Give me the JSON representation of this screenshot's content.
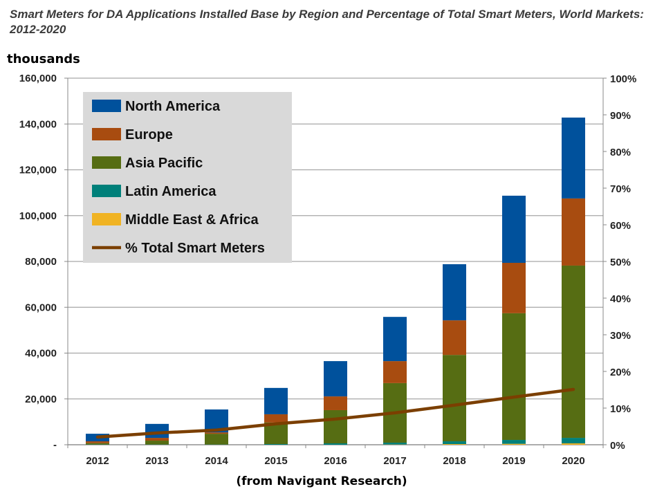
{
  "chart_data": {
    "type": "bar",
    "stacked": true,
    "title": "Smart Meters for DA Applications Installed Base by Region and Percentage of Total Smart Meters, World Markets: 2012-2020",
    "ylabel": "thousands",
    "source": "(from Navigant Research)",
    "categories": [
      "2012",
      "2013",
      "2014",
      "2015",
      "2016",
      "2017",
      "2018",
      "2019",
      "2020"
    ],
    "ylim": [
      0,
      160000
    ],
    "y_ticks": [
      "-",
      "20,000",
      "40,000",
      "60,000",
      "80,000",
      "100,000",
      "120,000",
      "140,000",
      "160,000"
    ],
    "y2lim": [
      0,
      100
    ],
    "y2_ticks": [
      "0%",
      "10%",
      "20%",
      "30%",
      "40%",
      "50%",
      "60%",
      "70%",
      "80%",
      "90%",
      "100%"
    ],
    "legend_position": "top-left",
    "series": [
      {
        "name": "Middle East & Africa",
        "color": "#f0b323",
        "values": [
          0,
          0,
          0,
          0,
          0,
          100,
          300,
          400,
          600
        ]
      },
      {
        "name": "Latin America",
        "color": "#00807a",
        "values": [
          100,
          100,
          100,
          300,
          600,
          800,
          1200,
          1700,
          2400
        ]
      },
      {
        "name": "Asia Pacific",
        "color": "#566d13",
        "values": [
          600,
          1700,
          4700,
          9400,
          14500,
          26000,
          37700,
          55300,
          75200
        ]
      },
      {
        "name": "Europe",
        "color": "#a84c10",
        "values": [
          800,
          1200,
          600,
          3600,
          6000,
          9600,
          15100,
          22000,
          29300
        ]
      },
      {
        "name": "North America",
        "color": "#00519c",
        "values": [
          3300,
          6100,
          10000,
          11500,
          15400,
          19300,
          24500,
          29300,
          35300
        ]
      }
    ],
    "line_series": {
      "name": "% Total Smart Meters",
      "color": "#7b3f00",
      "axis": "right",
      "values": [
        2.1,
        3.2,
        4.0,
        5.7,
        7.0,
        8.7,
        10.8,
        13.0,
        15.1
      ]
    },
    "legend_order": [
      "North America",
      "Europe",
      "Asia Pacific",
      "Latin America",
      "Middle East & Africa",
      "% Total Smart Meters"
    ]
  }
}
